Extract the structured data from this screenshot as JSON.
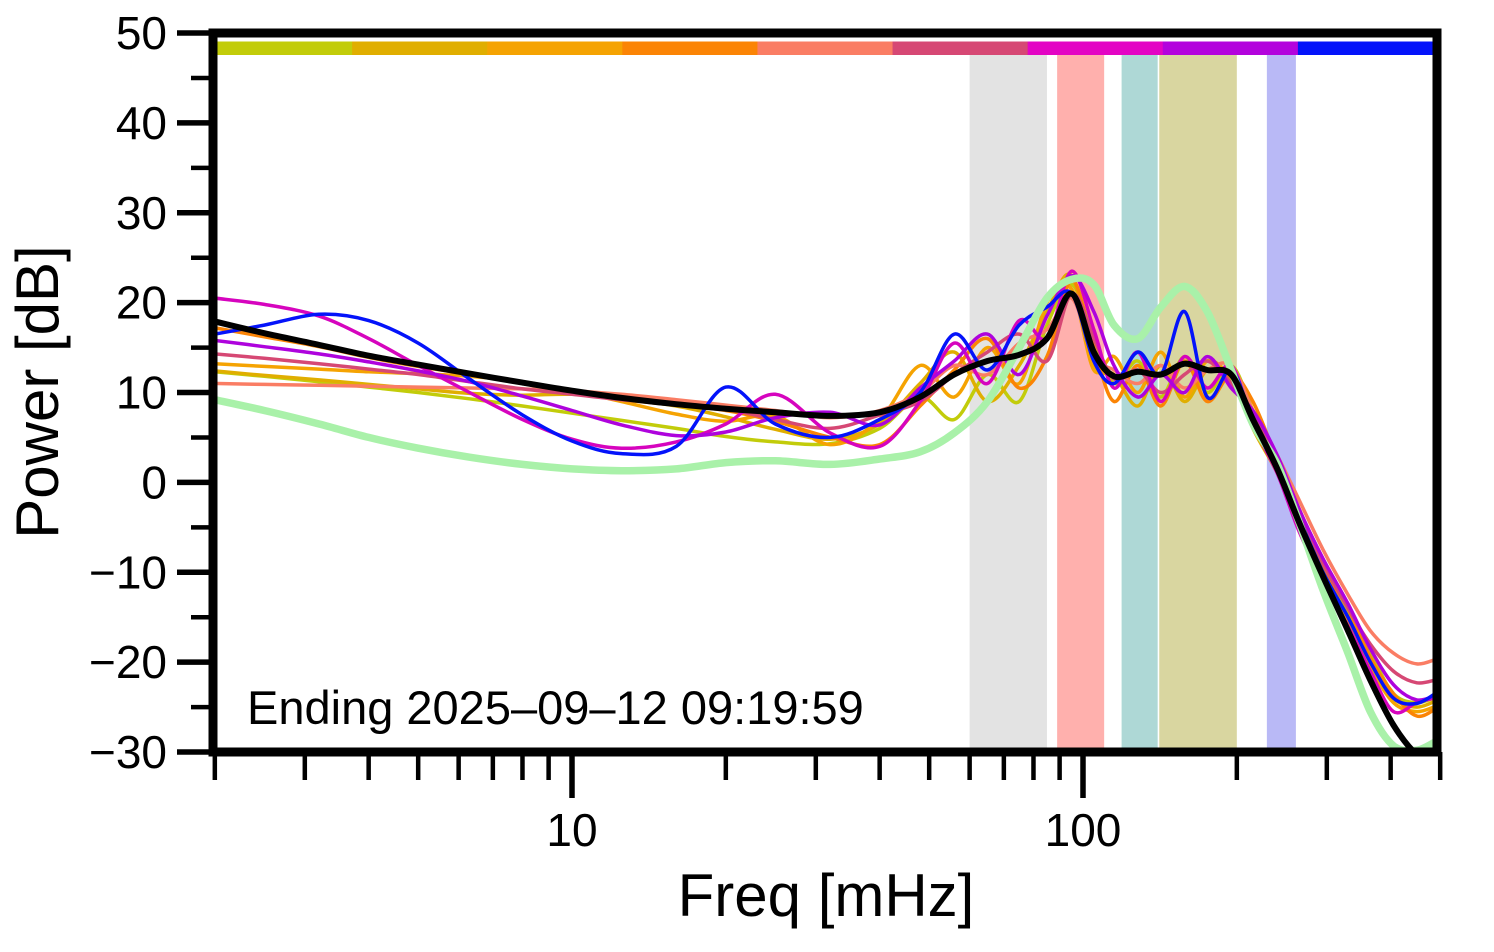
{
  "chart_data": {
    "type": "line",
    "title": "",
    "xlabel": "Freq [mHz]",
    "ylabel": "Power [dB]",
    "annotation": "Ending 2025–09–12 09:19:59",
    "x_scale": "log",
    "xlim": [
      2,
      500
    ],
    "ylim": [
      -30,
      50
    ],
    "grid": false,
    "legend": false,
    "x_major_ticks": [
      10,
      100
    ],
    "x_major_tick_labels": [
      "10",
      "100"
    ],
    "x_minor_ticks": [
      2,
      3,
      4,
      5,
      6,
      7,
      8,
      9,
      20,
      30,
      40,
      50,
      60,
      70,
      80,
      90,
      200,
      300,
      400,
      500
    ],
    "y_major_ticks": [
      50,
      40,
      30,
      20,
      10,
      0,
      -10,
      -20,
      -30
    ],
    "y_major_tick_labels": [
      "50",
      "40",
      "30",
      "20",
      "10",
      "0",
      "−10",
      "−20",
      "−30"
    ],
    "y_minor_ticks": [
      45,
      35,
      25,
      15,
      5,
      -5,
      -15,
      -25
    ],
    "frequencies_mhz": [
      2,
      2.5,
      3.2,
      4,
      5,
      6.3,
      8,
      10,
      12.5,
      16,
      20,
      25,
      32,
      40,
      48,
      56,
      65,
      75,
      85,
      95,
      105,
      115,
      128,
      142,
      158,
      175,
      195,
      215,
      240,
      265,
      295,
      330,
      365,
      405,
      450,
      495
    ],
    "series": [
      {
        "name": "spectrum-yellow-green",
        "color": "#c2cc0a",
        "width": 3.5,
        "values": [
          12.3,
          11.8,
          11.2,
          10.6,
          10.0,
          9.3,
          8.5,
          7.7,
          6.9,
          6.0,
          5.1,
          4.5,
          4.3,
          6.0,
          9.5,
          7.0,
          12.0,
          9.0,
          17.5,
          22.0,
          16.0,
          11.0,
          13.5,
          9.5,
          14.0,
          10.0,
          13.0,
          8.0,
          2.0,
          -3.5,
          -9.0,
          -14.5,
          -19.0,
          -23.5,
          -24.5,
          -23.8
        ]
      },
      {
        "name": "spectrum-goldenrod",
        "color": "#e0ae00",
        "width": 3.5,
        "values": [
          12.4,
          11.9,
          11.4,
          10.9,
          10.4,
          9.9,
          9.7,
          9.8,
          9.3,
          8.5,
          7.3,
          5.9,
          4.8,
          6.5,
          11.0,
          14.5,
          9.0,
          13.0,
          19.0,
          23.0,
          13.0,
          12.0,
          8.5,
          13.0,
          9.0,
          12.5,
          12.0,
          6.0,
          1.0,
          -5.0,
          -10.0,
          -15.0,
          -20.0,
          -24.0,
          -25.0,
          -24.2
        ]
      },
      {
        "name": "spectrum-orange",
        "color": "#f5a302",
        "width": 3.5,
        "values": [
          13.2,
          12.9,
          12.6,
          12.3,
          12.1,
          11.8,
          11.2,
          10.2,
          9.0,
          7.6,
          6.8,
          7.4,
          4.2,
          7.0,
          13.0,
          9.5,
          15.0,
          11.0,
          20.0,
          21.5,
          12.5,
          14.0,
          10.0,
          14.5,
          9.5,
          13.5,
          11.5,
          7.0,
          1.5,
          -4.5,
          -10.5,
          -15.5,
          -20.5,
          -24.5,
          -25.5,
          -24.8
        ]
      },
      {
        "name": "spectrum-dark-orange",
        "color": "#fb8405",
        "width": 3.5,
        "values": [
          17.2,
          16.2,
          15.1,
          13.9,
          12.9,
          12.0,
          11.0,
          10.0,
          9.2,
          8.6,
          8.0,
          6.8,
          5.0,
          4.2,
          8.5,
          12.5,
          16.0,
          10.5,
          14.0,
          22.5,
          15.0,
          9.0,
          13.0,
          8.5,
          13.5,
          9.0,
          12.0,
          9.0,
          2.5,
          -3.0,
          -9.5,
          -14.0,
          -19.5,
          -23.5,
          -26.0,
          -25.0
        ]
      },
      {
        "name": "spectrum-salmon",
        "color": "#fa7d64",
        "width": 3.5,
        "values": [
          11.0,
          10.9,
          10.8,
          10.7,
          10.6,
          10.5,
          10.4,
          10.2,
          9.8,
          9.2,
          8.6,
          8.0,
          7.2,
          8.0,
          10.0,
          13.0,
          12.0,
          15.5,
          17.0,
          20.5,
          14.0,
          12.5,
          11.0,
          13.0,
          10.5,
          12.5,
          13.0,
          8.0,
          3.0,
          -2.0,
          -7.5,
          -12.5,
          -16.5,
          -19.0,
          -20.2,
          -19.6
        ]
      },
      {
        "name": "spectrum-crimson",
        "color": "#d64874",
        "width": 3.5,
        "values": [
          14.3,
          13.8,
          13.2,
          12.6,
          12.0,
          11.2,
          10.4,
          9.8,
          9.2,
          8.8,
          8.2,
          7.0,
          6.0,
          7.5,
          9.0,
          12.0,
          14.5,
          16.5,
          13.5,
          21.0,
          16.0,
          11.5,
          12.5,
          10.0,
          12.0,
          13.5,
          11.0,
          7.5,
          2.0,
          -3.5,
          -9.0,
          -14.0,
          -18.0,
          -21.0,
          -22.3,
          -21.9
        ]
      },
      {
        "name": "spectrum-magenta",
        "color": "#d604be",
        "width": 3.5,
        "values": [
          20.5,
          19.8,
          18.5,
          16.0,
          13.0,
          10.0,
          7.0,
          4.8,
          3.8,
          4.5,
          6.5,
          9.8,
          5.5,
          4.0,
          9.0,
          15.5,
          11.0,
          18.0,
          16.0,
          23.5,
          17.0,
          10.5,
          14.5,
          9.0,
          14.0,
          10.5,
          13.0,
          6.5,
          1.0,
          -5.5,
          -11.0,
          -16.0,
          -21.0,
          -25.5,
          -24.5,
          -23.9
        ]
      },
      {
        "name": "spectrum-purple",
        "color": "#ae03dd",
        "width": 3.5,
        "values": [
          15.8,
          15.1,
          14.3,
          13.4,
          12.4,
          11.2,
          9.6,
          8.0,
          6.4,
          5.2,
          5.6,
          7.2,
          7.8,
          6.4,
          10.5,
          13.5,
          16.5,
          12.0,
          18.5,
          23.0,
          19.0,
          13.0,
          9.5,
          12.0,
          10.0,
          14.0,
          10.5,
          8.0,
          3.0,
          -3.0,
          -8.5,
          -13.5,
          -18.5,
          -22.5,
          -24.2,
          -23.6
        ]
      },
      {
        "name": "spectrum-blue",
        "color": "#0413fa",
        "width": 3.5,
        "values": [
          16.5,
          17.5,
          18.7,
          18.0,
          15.5,
          11.5,
          7.5,
          4.6,
          3.2,
          4.0,
          10.6,
          6.5,
          5.0,
          7.0,
          10.0,
          16.5,
          12.5,
          17.5,
          19.5,
          21.0,
          13.5,
          11.0,
          14.5,
          12.0,
          19.0,
          9.5,
          12.5,
          7.0,
          2.0,
          -4.0,
          -10.0,
          -15.0,
          -20.0,
          -24.0,
          -24.6,
          -23.3
        ]
      },
      {
        "name": "envelope-light-green",
        "color": "#a9f1a9",
        "width": 7.5,
        "values": [
          9.2,
          8.0,
          6.5,
          5.0,
          3.8,
          2.8,
          2.0,
          1.5,
          1.3,
          1.5,
          2.2,
          2.4,
          2.0,
          2.6,
          3.4,
          5.5,
          9.0,
          15.0,
          20.5,
          22.6,
          22.0,
          17.5,
          16.0,
          19.5,
          21.8,
          19.0,
          12.5,
          6.5,
          2.0,
          -4.5,
          -12.0,
          -19.0,
          -25.5,
          -29.3,
          -29.8,
          -28.7
        ]
      },
      {
        "name": "mean-black",
        "color": "#000000",
        "width": 6,
        "values": [
          17.9,
          16.6,
          15.3,
          14.1,
          13.1,
          12.1,
          11.1,
          10.2,
          9.4,
          8.7,
          8.2,
          7.8,
          7.4,
          7.8,
          9.5,
          12.0,
          13.5,
          14.2,
          16.0,
          21.0,
          14.5,
          11.8,
          12.3,
          12.0,
          13.2,
          12.5,
          12.0,
          7.0,
          1.5,
          -4.5,
          -10.5,
          -16.5,
          -22.0,
          -27.0,
          -30.3,
          -31.5
        ]
      }
    ],
    "highlight_bands": [
      {
        "name": "band-gray",
        "f_start": 60,
        "f_end": 85,
        "color": "#e3e3e3"
      },
      {
        "name": "band-pink",
        "f_start": 89,
        "f_end": 110,
        "color": "#ffb0ad"
      },
      {
        "name": "band-teal",
        "f_start": 119,
        "f_end": 140,
        "color": "#aed8d6"
      },
      {
        "name": "band-olive",
        "f_start": 141,
        "f_end": 200,
        "color": "#d9d6a0"
      },
      {
        "name": "band-lavender",
        "f_start": 229,
        "f_end": 261,
        "color": "#b9b9f6"
      }
    ],
    "top_colorbar_segments": [
      "#c2cc0a",
      "#e0ae00",
      "#f5a302",
      "#fb8405",
      "#fa7d64",
      "#d64874",
      "#e304c4",
      "#b303dd",
      "#0413fa"
    ]
  }
}
